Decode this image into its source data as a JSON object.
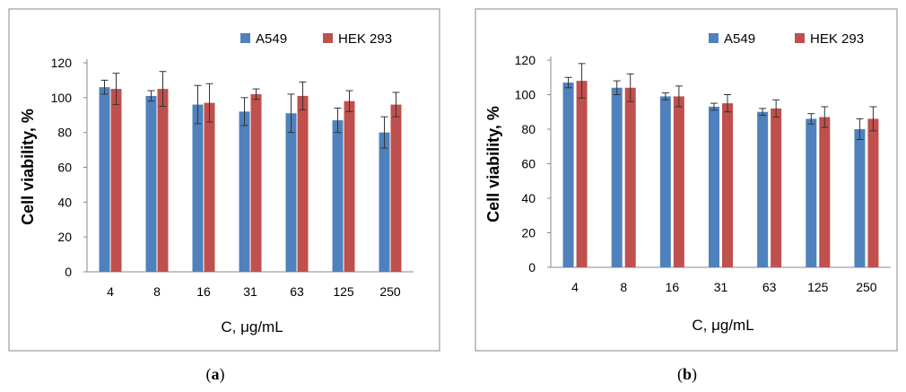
{
  "colors": {
    "series_1": "#4F81BD",
    "series_2": "#C0504D",
    "axis": "#888888",
    "error_bar": "#333333",
    "frame": "#888888"
  },
  "chart_data": [
    {
      "type": "bar",
      "caption_letter": "a",
      "categories": [
        "4",
        "8",
        "16",
        "31",
        "63",
        "125",
        "250"
      ],
      "series": [
        {
          "name": "A549",
          "values": [
            106,
            101,
            96,
            92,
            91,
            87,
            80
          ],
          "errors": [
            4,
            3,
            11,
            8,
            11,
            7,
            9
          ]
        },
        {
          "name": "HEK 293",
          "values": [
            105,
            105,
            97,
            102,
            101,
            98,
            96
          ],
          "errors": [
            9,
            10,
            11,
            3,
            8,
            6,
            7
          ]
        }
      ],
      "xlabel": "C, μg/mL",
      "ylabel": "Cell viability, %",
      "ylim": [
        0,
        120
      ],
      "yticks": [
        "0",
        "20",
        "40",
        "60",
        "80",
        "100",
        "120"
      ],
      "grid": false,
      "legend_position": "top-right"
    },
    {
      "type": "bar",
      "caption_letter": "b",
      "categories": [
        "4",
        "8",
        "16",
        "31",
        "63",
        "125",
        "250"
      ],
      "series": [
        {
          "name": "A549",
          "values": [
            107,
            104,
            99,
            93,
            90,
            86,
            80
          ],
          "errors": [
            3,
            4,
            2,
            2,
            2,
            3,
            6
          ]
        },
        {
          "name": "HEK 293",
          "values": [
            108,
            104,
            99,
            95,
            92,
            87,
            86
          ],
          "errors": [
            10,
            8,
            6,
            5,
            5,
            6,
            7
          ]
        }
      ],
      "xlabel": "C, μg/mL",
      "ylabel": "Cell viability, %",
      "ylim": [
        0,
        120
      ],
      "yticks": [
        "0",
        "20",
        "40",
        "60",
        "80",
        "100",
        "120"
      ],
      "grid": false,
      "legend_position": "top-right"
    }
  ]
}
